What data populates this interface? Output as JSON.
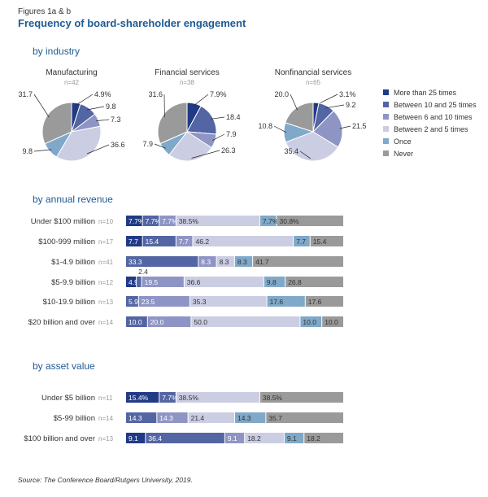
{
  "figure_label": "Figures 1a & b",
  "figure_title": "Frequency of board-shareholder engagement",
  "sections": {
    "industry": "by industry",
    "revenue": "by annual revenue",
    "asset": "by asset value"
  },
  "source": "Source: The Conference Board/Rutgers University, 2019.",
  "colors": {
    "More than 25 times": "#203a86",
    "Between 10 and 25 times": "#5365a3",
    "Between 6 and 10 times": "#8e95c5",
    "Between 2 and 5 times": "#cbcde3",
    "Once": "#7fa8c9",
    "Never": "#9a9a9a"
  },
  "chart_data": [
    {
      "type": "pie",
      "section": "by industry",
      "categories": [
        "More than 25 times",
        "Between 10 and 25 times",
        "Between 6 and 10 times",
        "Between 2 and 5 times",
        "Once",
        "Never"
      ],
      "legend": [
        "More than 25 times",
        "Between 10 and 25 times",
        "Between 6 and 10 times",
        "Between 2 and 5 times",
        "Once",
        "Never"
      ],
      "legend_position": "right",
      "pies": [
        {
          "title": "Manufacturing",
          "n": "n=42",
          "values": [
            4.9,
            9.8,
            7.3,
            36.6,
            9.8,
            31.7
          ],
          "labels": [
            "4.9%",
            "9.8",
            "7.3",
            "36.6",
            "9.8",
            "31.7"
          ]
        },
        {
          "title": "Financial services",
          "n": "n=38",
          "values": [
            7.9,
            18.4,
            7.9,
            26.3,
            7.9,
            31.6
          ],
          "labels": [
            "7.9%",
            "18.4",
            "7.9",
            "26.3",
            "7.9",
            "31.6"
          ]
        },
        {
          "title": "Nonfinancial services",
          "n": "n=65",
          "values": [
            3.1,
            9.2,
            21.5,
            35.4,
            10.8,
            20.0
          ],
          "labels": [
            "3.1%",
            "9.2",
            "21.5",
            "35.4",
            "10.8",
            "20.0"
          ]
        }
      ]
    },
    {
      "type": "bar",
      "orientation": "horizontal",
      "stacked": true,
      "section": "by annual revenue",
      "categories": [
        "Under $100 million",
        "$100-999 million",
        "$1-4.9 billion",
        "$5-9.9 billion",
        "$10-19.9 billion",
        "$20 billion and over"
      ],
      "n": [
        "n=10",
        "n=17",
        "n=41",
        "n=12",
        "n=13",
        "n=14"
      ],
      "series": [
        {
          "name": "More than 25 times",
          "values": [
            7.7,
            7.7,
            0,
            4.9,
            0,
            0
          ]
        },
        {
          "name": "Between 10 and 25 times",
          "values": [
            7.7,
            15.4,
            33.3,
            2.4,
            5.9,
            10.0
          ]
        },
        {
          "name": "Between 6 and 10 times",
          "values": [
            7.7,
            7.7,
            8.3,
            19.5,
            23.5,
            20.0
          ]
        },
        {
          "name": "Between 2 and 5 times",
          "values": [
            38.5,
            46.2,
            8.3,
            36.6,
            35.3,
            50.0
          ]
        },
        {
          "name": "Once",
          "values": [
            7.7,
            7.7,
            8.3,
            9.8,
            17.6,
            10.0
          ]
        },
        {
          "name": "Never",
          "values": [
            30.8,
            15.4,
            41.7,
            26.8,
            17.6,
            10.0
          ]
        }
      ],
      "labels": [
        [
          "7.7%",
          "7.7%",
          "7.7%",
          "38.5%",
          "7.7%",
          "30.8%"
        ],
        [
          "7.7",
          "15.4",
          "7.7",
          "46.2",
          "7.7",
          "15.4"
        ],
        [
          "",
          "33.3",
          "8.3",
          "8.3",
          "8.3",
          "41.7"
        ],
        [
          "4.9",
          "2.4",
          "19.5",
          "36.6",
          "9.8",
          "26.8"
        ],
        [
          "",
          "5.9",
          "23.5",
          "35.3",
          "17.6",
          "17.6"
        ],
        [
          "",
          "10.0",
          "20.0",
          "50.0",
          "10.0",
          "10.0"
        ]
      ]
    },
    {
      "type": "bar",
      "orientation": "horizontal",
      "stacked": true,
      "section": "by asset value",
      "categories": [
        "Under $5 billion",
        "$5-99 billion",
        "$100 billion and over"
      ],
      "n": [
        "n=11",
        "n=14",
        "n=13"
      ],
      "series": [
        {
          "name": "More than 25 times",
          "values": [
            15.4,
            0,
            9.1
          ]
        },
        {
          "name": "Between 10 and 25 times",
          "values": [
            7.7,
            14.3,
            36.4
          ]
        },
        {
          "name": "Between 6 and 10 times",
          "values": [
            0,
            14.3,
            9.1
          ]
        },
        {
          "name": "Between 2 and 5 times",
          "values": [
            38.5,
            21.4,
            18.2
          ]
        },
        {
          "name": "Once",
          "values": [
            0,
            14.3,
            9.1
          ]
        },
        {
          "name": "Never",
          "values": [
            38.5,
            35.7,
            18.2
          ]
        }
      ],
      "labels": [
        [
          "15.4%",
          "7.7%",
          "",
          "38.5%",
          "",
          "38.5%"
        ],
        [
          "",
          "14.3",
          "14.3",
          "21.4",
          "14.3",
          "35.7"
        ],
        [
          "9.1",
          "36.4",
          "9.1",
          "18.2",
          "9.1",
          "18.2"
        ]
      ]
    }
  ]
}
